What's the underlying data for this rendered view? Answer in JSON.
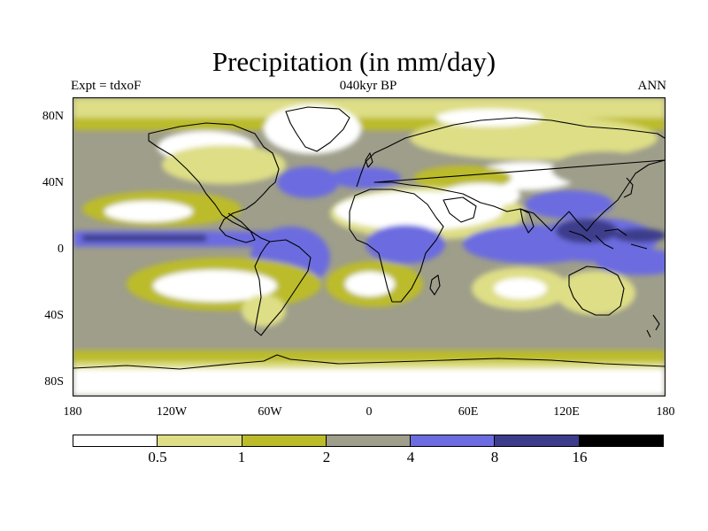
{
  "title": "Precipitation (in mm/day)",
  "subtitle_left": "Expt = tdxoF",
  "subtitle_center": "040kyr BP",
  "subtitle_right": "ANN",
  "y_ticks": [
    "80N",
    "40N",
    "0",
    "40S",
    "80S"
  ],
  "x_ticks": [
    "180",
    "120W",
    "60W",
    "0",
    "60E",
    "120E",
    "180"
  ],
  "colorbar": {
    "colors": [
      "#ffffff",
      "#dede86",
      "#bcbc2a",
      "#9e9e8a",
      "#6c6ce0",
      "#3c3c8c",
      "#000000"
    ],
    "labels": [
      "0.5",
      "1",
      "2",
      "4",
      "8",
      "16"
    ]
  }
}
